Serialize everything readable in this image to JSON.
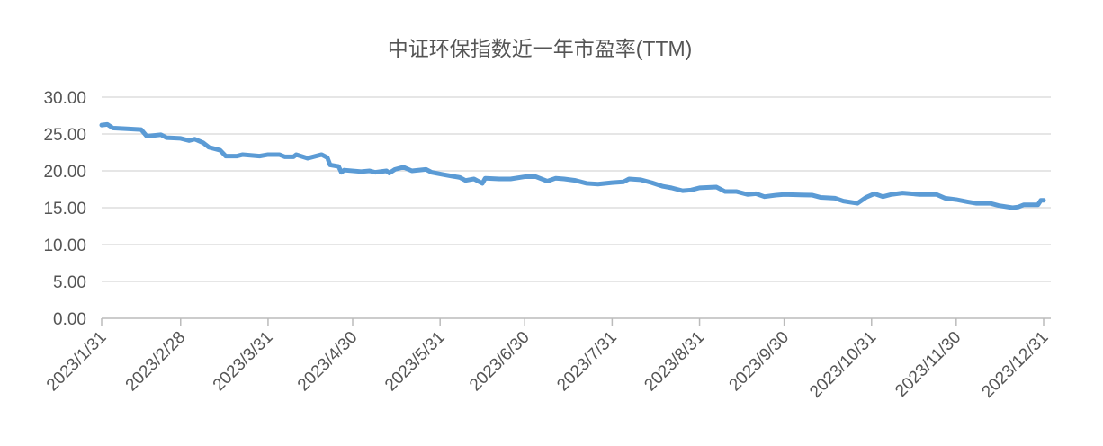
{
  "chart_data": {
    "type": "line",
    "title": "中证环保指数近一年市盈率(TTM)",
    "x": [
      "2023/1/31",
      "2023/2/2",
      "2023/2/4",
      "2023/2/9",
      "2023/2/14",
      "2023/2/16",
      "2023/2/21",
      "2023/2/23",
      "2023/2/28",
      "2023/3/3",
      "2023/3/5",
      "2023/3/8",
      "2023/3/10",
      "2023/3/14",
      "2023/3/16",
      "2023/3/20",
      "2023/3/22",
      "2023/3/28",
      "2023/3/31",
      "2023/4/4",
      "2023/4/6",
      "2023/4/9",
      "2023/4/10",
      "2023/4/14",
      "2023/4/17",
      "2023/4/19",
      "2023/4/21",
      "2023/4/22",
      "2023/4/25",
      "2023/4/26",
      "2023/4/27",
      "2023/5/3",
      "2023/5/6",
      "2023/5/8",
      "2023/5/12",
      "2023/5/13",
      "2023/5/15",
      "2023/5/18",
      "2023/5/21",
      "2023/5/26",
      "2023/5/28",
      "2023/6/1",
      "2023/6/4",
      "2023/6/7",
      "2023/6/9",
      "2023/6/12",
      "2023/6/15",
      "2023/6/16",
      "2023/6/21",
      "2023/6/25",
      "2023/6/30",
      "2023/7/4",
      "2023/7/8",
      "2023/7/11",
      "2023/7/14",
      "2023/7/18",
      "2023/7/22",
      "2023/7/26",
      "2023/7/31",
      "2023/8/4",
      "2023/8/6",
      "2023/8/10",
      "2023/8/14",
      "2023/8/18",
      "2023/8/21",
      "2023/8/25",
      "2023/8/28",
      "2023/8/31",
      "2023/9/6",
      "2023/9/9",
      "2023/9/13",
      "2023/9/17",
      "2023/9/20",
      "2023/9/23",
      "2023/9/27",
      "2023/9/30",
      "2023/10/10",
      "2023/10/13",
      "2023/10/18",
      "2023/10/21",
      "2023/10/26",
      "2023/10/29",
      "2023/11/1",
      "2023/11/4",
      "2023/11/7",
      "2023/11/11",
      "2023/11/17",
      "2023/11/23",
      "2023/11/26",
      "2023/11/30",
      "2023/12/4",
      "2023/12/7",
      "2023/12/12",
      "2023/12/15",
      "2023/12/20",
      "2023/12/22",
      "2023/12/24",
      "2023/12/29",
      "2023/12/30",
      "2023/12/31"
    ],
    "series": [
      {
        "color": "#5b9bd5",
        "values": [
          26.2,
          26.3,
          25.8,
          25.7,
          25.6,
          24.7,
          24.9,
          24.5,
          24.4,
          24.1,
          24.3,
          23.8,
          23.2,
          22.8,
          22.0,
          22.0,
          22.2,
          22.0,
          22.2,
          22.2,
          21.9,
          21.9,
          22.2,
          21.7,
          22.0,
          22.2,
          21.8,
          20.8,
          20.6,
          19.8,
          20.1,
          19.9,
          20.0,
          19.8,
          20.0,
          19.7,
          20.2,
          20.5,
          20.0,
          20.2,
          19.8,
          19.5,
          19.3,
          19.1,
          18.7,
          18.9,
          18.3,
          19.0,
          18.9,
          18.9,
          19.2,
          19.2,
          18.6,
          19.0,
          18.9,
          18.7,
          18.3,
          18.2,
          18.4,
          18.5,
          18.9,
          18.8,
          18.4,
          17.9,
          17.7,
          17.3,
          17.4,
          17.7,
          17.8,
          17.2,
          17.2,
          16.8,
          16.9,
          16.5,
          16.7,
          16.8,
          16.7,
          16.4,
          16.3,
          15.9,
          15.6,
          16.4,
          16.9,
          16.5,
          16.8,
          17.0,
          16.8,
          16.8,
          16.3,
          16.1,
          15.8,
          15.6,
          15.6,
          15.3,
          15.0,
          15.1,
          15.4,
          15.4,
          16.0,
          16.0
        ]
      }
    ],
    "xlim": [
      "2023/1/31",
      "2023/12/31"
    ],
    "xticks": [
      "2023/1/31",
      "2023/2/28",
      "2023/3/31",
      "2023/4/30",
      "2023/5/31",
      "2023/6/30",
      "2023/7/31",
      "2023/8/31",
      "2023/9/30",
      "2023/10/31",
      "2023/11/30",
      "2023/12/31"
    ],
    "ylim": [
      0,
      30
    ],
    "yticks": [
      {
        "value": 0,
        "label": "0.00"
      },
      {
        "value": 5,
        "label": "5.00"
      },
      {
        "value": 10,
        "label": "10.00"
      },
      {
        "value": 15,
        "label": "15.00"
      },
      {
        "value": 20,
        "label": "20.00"
      },
      {
        "value": 25,
        "label": "25.00"
      },
      {
        "value": 30,
        "label": "30.00"
      }
    ],
    "grid": true
  }
}
